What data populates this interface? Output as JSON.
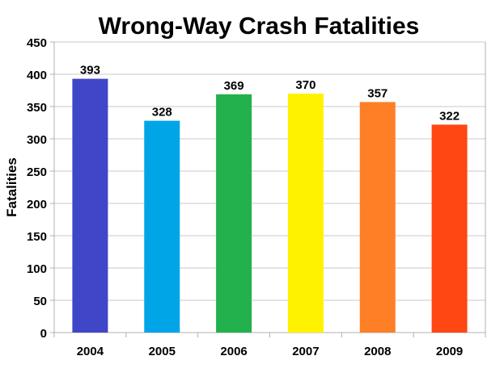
{
  "chart_data": {
    "type": "bar",
    "title": "Wrong-Way Crash Fatalities",
    "xlabel": "",
    "ylabel": "Fatalities",
    "categories": [
      "2004",
      "2005",
      "2006",
      "2007",
      "2008",
      "2009"
    ],
    "values": [
      393,
      328,
      369,
      370,
      357,
      322
    ],
    "colors": [
      "#4046c8",
      "#00a5e8",
      "#22b14c",
      "#fff200",
      "#ff7f27",
      "#ff4713"
    ],
    "ylim": [
      0,
      450
    ],
    "yticks": [
      0,
      50,
      100,
      150,
      200,
      250,
      300,
      350,
      400,
      450
    ],
    "grid": true,
    "legend": "none",
    "data_labels": true
  }
}
